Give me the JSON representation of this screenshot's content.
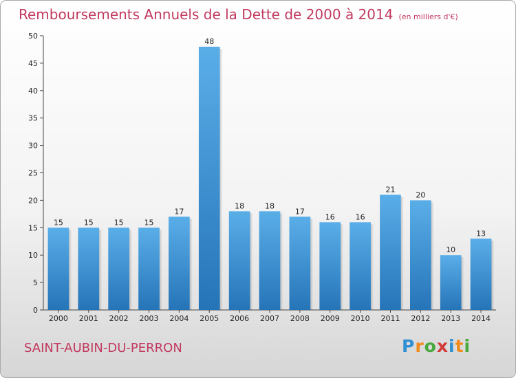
{
  "header": {
    "title": "Remboursements Annuels de la Dette de 2000 à 2014",
    "unit": "(en milliers d'€)"
  },
  "footer": {
    "commune": "SAINT-AUBIN-DU-PERRON",
    "logo_letters": [
      "P",
      "r",
      "o",
      "x",
      "i",
      "t",
      "i"
    ],
    "logo_colors": [
      "#2f8fd3",
      "#f08a1c",
      "#49a83d",
      "#d23a3a",
      "#2f8fd3",
      "#f08a1c",
      "#49a83d"
    ]
  },
  "chart_data": {
    "type": "bar",
    "title": "Remboursements Annuels de la Dette de 2000 à 2014",
    "categories": [
      "2000",
      "2001",
      "2002",
      "2003",
      "2004",
      "2005",
      "2006",
      "2007",
      "2008",
      "2009",
      "2010",
      "2011",
      "2012",
      "2013",
      "2014"
    ],
    "values": [
      15,
      15,
      15,
      15,
      17,
      48,
      18,
      18,
      17,
      16,
      16,
      21,
      20,
      10,
      13
    ],
    "ylim": [
      0,
      50
    ],
    "yticks": [
      0,
      5,
      10,
      15,
      20,
      25,
      30,
      35,
      40,
      45,
      50
    ],
    "grid": false,
    "bar_color_top": "#5aaee8",
    "bar_color_bottom": "#2574b8"
  }
}
